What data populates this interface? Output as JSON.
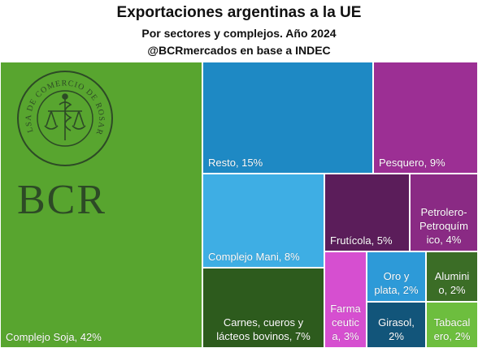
{
  "header": {
    "title": "Exportaciones argentinas a la UE",
    "subtitle": "Por sectores y complejos. Año 2024",
    "source": "@BCRmercados en base a INDEC"
  },
  "logo": {
    "seal_text": "BOLSA DE COMERCIO DE ROSARIO",
    "wordmark": "BCR"
  },
  "chart_data": {
    "type": "treemap",
    "title": "Exportaciones argentinas a la UE",
    "subtitle": "Por sectores y complejos. Año 2024",
    "unit": "%",
    "items": [
      {
        "name": "Complejo Soja",
        "value": 42,
        "label": "Complejo Soja, 42%",
        "color": "#58a52f"
      },
      {
        "name": "Resto",
        "value": 15,
        "label": "Resto, 15%",
        "color": "#1e89c4"
      },
      {
        "name": "Pesquero",
        "value": 9,
        "label": "Pesquero, 9%",
        "color": "#9c2f94"
      },
      {
        "name": "Complejo Mani",
        "value": 8,
        "label": "Complejo Mani, 8%",
        "color": "#3eaee4"
      },
      {
        "name": "Carnes, cueros y lácteos bovinos",
        "value": 7,
        "label": "Carnes, cueros y lácteos bovinos, 7%",
        "color": "#2d5b1d"
      },
      {
        "name": "Frutícola",
        "value": 5,
        "label": "Frutícola, 5%",
        "color": "#5b1d5a"
      },
      {
        "name": "Petrolero-Petroquímico",
        "value": 4,
        "label": "Petrolero-Petroquímico, 4%",
        "color": "#8a2a84"
      },
      {
        "name": "Farmaceutica",
        "value": 3,
        "label": "Farmaceutica, 3%",
        "color": "#d64fd0"
      },
      {
        "name": "Oro y plata",
        "value": 2,
        "label": "Oro y plata, 2%",
        "color": "#2d9ad8"
      },
      {
        "name": "Girasol",
        "value": 2,
        "label": "Girasol, 2%",
        "color": "#12557a"
      },
      {
        "name": "Aluminio",
        "value": 2,
        "label": "Aluminio, 2%",
        "color": "#3b6d26"
      },
      {
        "name": "Tabacalero",
        "value": 2,
        "label": "Tabacalero, 2%",
        "color": "#6dbe3e"
      }
    ]
  }
}
